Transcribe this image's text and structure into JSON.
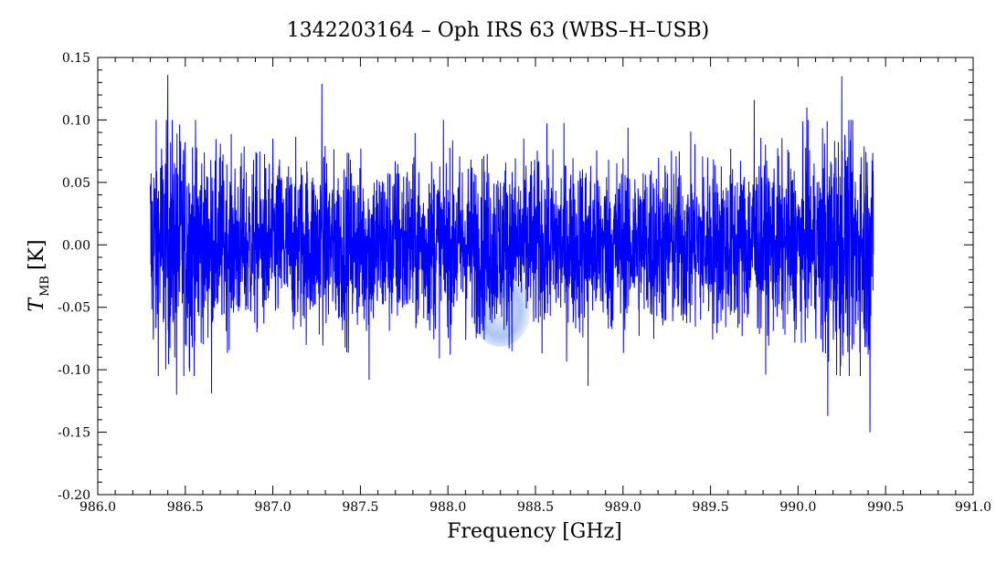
{
  "chart_data": {
    "type": "line",
    "title": "1342203164 – Oph IRS 63 (WBS–H–USB)",
    "xlabel": "Frequency [GHz]",
    "ylabel_main": "T",
    "ylabel_sub": "MB",
    "ylabel_unit": "[K]",
    "xlim": [
      986.0,
      991.0
    ],
    "ylim": [
      -0.2,
      0.15
    ],
    "x_ticks": [
      "986.0",
      "986.5",
      "987.0",
      "987.5",
      "988.0",
      "988.5",
      "989.0",
      "989.5",
      "990.0",
      "990.5",
      "991.0"
    ],
    "y_ticks": [
      "0.15",
      "0.10",
      "0.05",
      "0.00",
      "-0.05",
      "-0.10",
      "-0.15",
      "-0.20"
    ],
    "grid": false,
    "series": [
      {
        "line_color": "#0000ff",
        "x_start": 986.3,
        "x_end": 990.43,
        "noise_rms": 0.035,
        "peaks_high": [
          {
            "x": 986.4,
            "y": 0.136
          },
          {
            "x": 986.7,
            "y": 0.081
          },
          {
            "x": 987.28,
            "y": 0.129
          },
          {
            "x": 989.75,
            "y": 0.116
          },
          {
            "x": 990.25,
            "y": 0.135
          },
          {
            "x": 990.05,
            "y": 0.11
          }
        ],
        "peaks_low": [
          {
            "x": 986.45,
            "y": -0.12
          },
          {
            "x": 986.65,
            "y": -0.119
          },
          {
            "x": 987.55,
            "y": -0.108
          },
          {
            "x": 988.8,
            "y": -0.113
          },
          {
            "x": 990.17,
            "y": -0.137
          },
          {
            "x": 990.41,
            "y": -0.15
          }
        ]
      }
    ],
    "highlight": {
      "x": 988.3,
      "y": -0.045,
      "color": "#7aa0e8"
    }
  }
}
